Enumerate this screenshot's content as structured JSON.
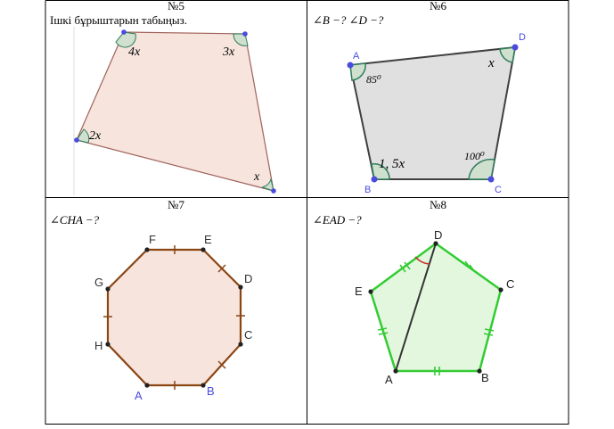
{
  "problems": [
    {
      "number": "№5",
      "task": "Ішкі бұрыштарын табыңыз.",
      "angles": [
        "4x",
        "3x",
        "2x",
        "x"
      ],
      "colors": {
        "fill": "#f6e4dd",
        "stroke": "#a0625a",
        "vertex": "#4a4adf",
        "arc": "#2e7d5b"
      }
    },
    {
      "number": "№6",
      "task": "∠B −? ∠D −?",
      "vertices": [
        "A",
        "B",
        "C",
        "D"
      ],
      "angles": {
        "A": "85⁰",
        "B": "1, 5x",
        "C": "100⁰",
        "D": "x"
      },
      "colors": {
        "fill": "#e0e0e0",
        "stroke": "#404040",
        "vertex": "#4a4adf",
        "arc": "#2e7d5b"
      }
    },
    {
      "number": "№7",
      "task": "∠CHA −?",
      "vertices": [
        "F",
        "E",
        "D",
        "C",
        "B",
        "A",
        "H",
        "G"
      ],
      "colors": {
        "fill": "#f6e4dd",
        "stroke": "#8b4513",
        "vertex_label": "#4a4adf"
      }
    },
    {
      "number": "№8",
      "task": "∠EAD −?",
      "vertices": [
        "D",
        "C",
        "B",
        "A",
        "E"
      ],
      "colors": {
        "fill": "#e3f7de",
        "stroke": "#33cc33",
        "diagonal": "#333333",
        "arc": "#c0392b"
      }
    }
  ]
}
